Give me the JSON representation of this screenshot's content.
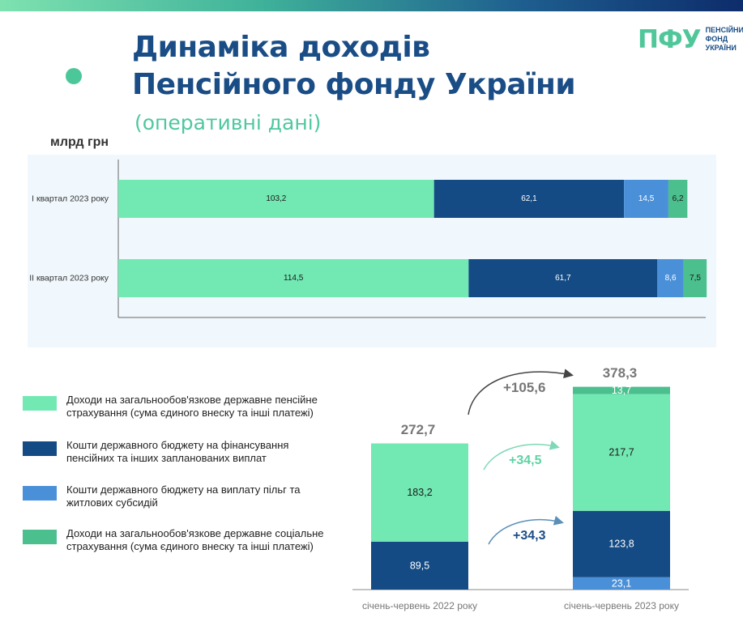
{
  "header": {
    "title_line1": "Динаміка доходів",
    "title_line2": "Пенсійного фонду України",
    "subtitle": "(оперативні дані)",
    "logo_mark": "ПФУ",
    "logo_line1": "ПЕНСІЙНИЙ",
    "logo_line2": "ФОНД",
    "logo_line3": "УКРАЇНИ"
  },
  "colors": {
    "light_green": "#72e8b3",
    "dark_blue": "#144b84",
    "light_blue": "#4a90d9",
    "teal": "#4cbf8e"
  },
  "chart_data": [
    {
      "type": "bar",
      "orientation": "horizontal",
      "stacked": true,
      "ylabel": "млрд грн",
      "categories": [
        "I квартал 2023 року",
        "II квартал 2023 року"
      ],
      "series": [
        {
          "color_key": "light_green",
          "values": [
            103.2,
            114.5
          ],
          "labels": [
            "103,2",
            "114,5"
          ]
        },
        {
          "color_key": "dark_blue",
          "values": [
            62.1,
            61.7
          ],
          "labels": [
            "62,1",
            "61,7"
          ]
        },
        {
          "color_key": "light_blue",
          "values": [
            14.5,
            8.6
          ],
          "labels": [
            "14,5",
            "8,6"
          ]
        },
        {
          "color_key": "teal",
          "values": [
            6.2,
            7.5
          ],
          "labels": [
            "6,2",
            "7,5"
          ]
        }
      ],
      "xlim": [
        0,
        192
      ]
    },
    {
      "type": "bar",
      "orientation": "vertical",
      "stacked": true,
      "categories": [
        "січень-червень 2022 року",
        "січень-червень 2023 року"
      ],
      "totals": [
        "272,7",
        "378,3"
      ],
      "series": [
        {
          "color_key": "light_blue",
          "values": [
            0,
            23.1
          ],
          "labels": [
            "",
            "23,1"
          ]
        },
        {
          "color_key": "dark_blue",
          "values": [
            89.5,
            123.8
          ],
          "labels": [
            "89,5",
            "123,8"
          ]
        },
        {
          "color_key": "light_green",
          "values": [
            183.2,
            217.7
          ],
          "labels": [
            "183,2",
            "217,7"
          ]
        },
        {
          "color_key": "teal",
          "values": [
            0,
            13.7
          ],
          "labels": [
            "",
            "13,7"
          ]
        }
      ],
      "annotations": {
        "total_change": "+105,6",
        "green_change": "+34,5",
        "blue_change": "+34,3"
      }
    }
  ],
  "legend": {
    "items": [
      {
        "color_key": "light_green",
        "label": "Доходи на загальнообов'язкове державне пенсійне страхування (сума єдиного внеску та інші платежі)"
      },
      {
        "color_key": "dark_blue",
        "label": "Кошти державного бюджету на фінансування пенсійних та інших запланованих виплат"
      },
      {
        "color_key": "light_blue",
        "label": "Кошти державного бюджету на виплату пільг та житлових субсидій"
      },
      {
        "color_key": "teal",
        "label": "Доходи на загальнообов'язкове державне соціальне страхування (сума єдиного внеску та інші платежі)"
      }
    ]
  }
}
